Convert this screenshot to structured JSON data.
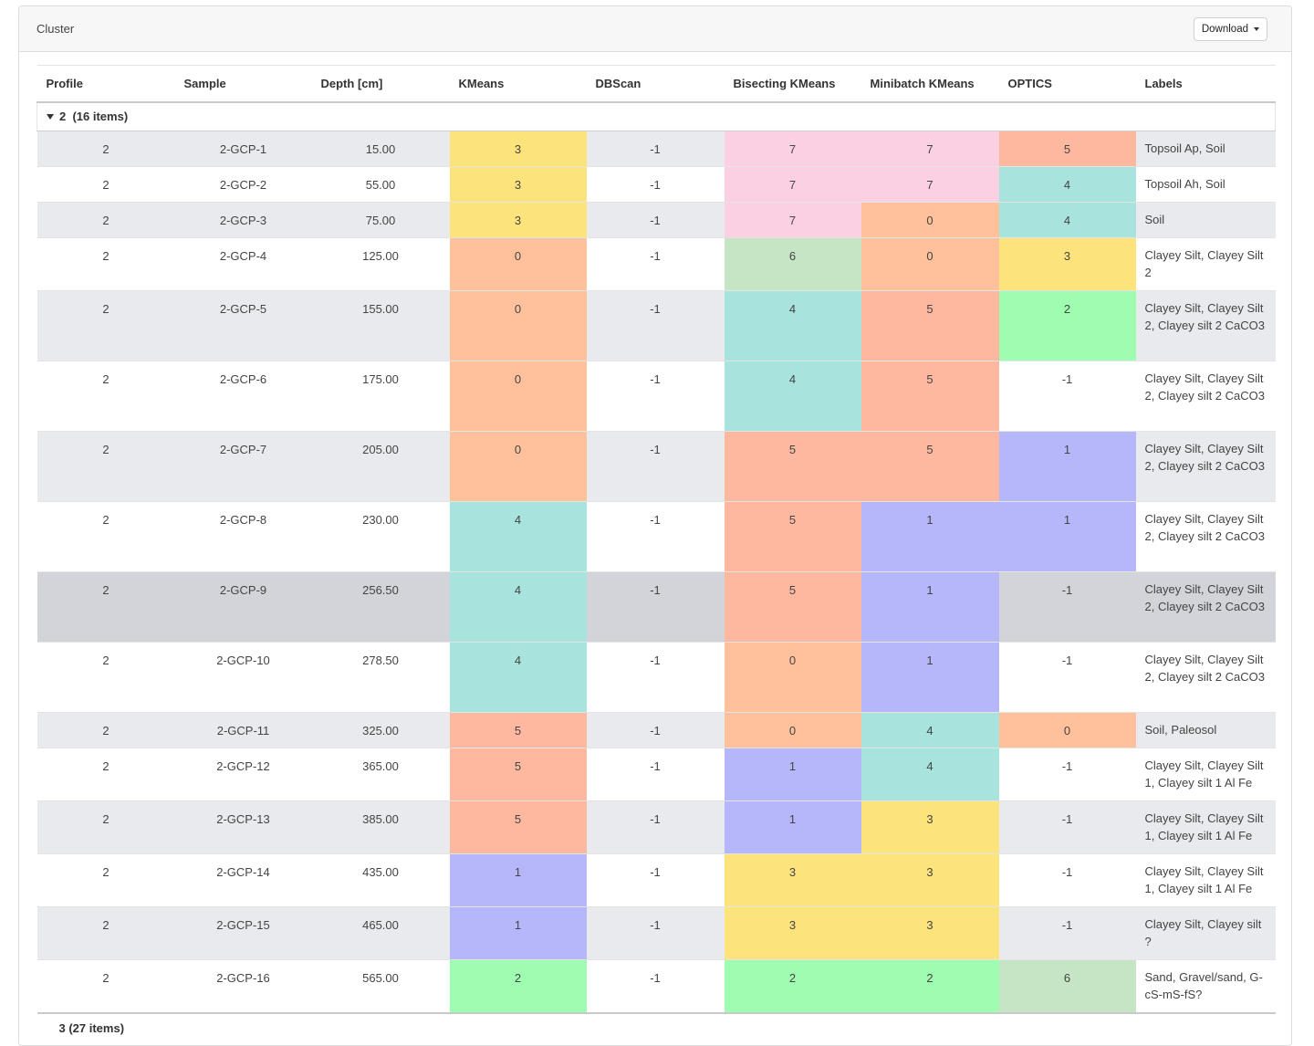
{
  "header": {
    "title": "Cluster",
    "download_label": "Download"
  },
  "columns": [
    "Profile",
    "Sample",
    "Depth [cm]",
    "KMeans",
    "DBScan",
    "Bisecting KMeans",
    "Minibatch KMeans",
    "OPTICS",
    "Labels"
  ],
  "group": {
    "key": "2",
    "count_label": "(16 items)"
  },
  "next_group": {
    "label": "3 (27 items)"
  },
  "colors": {
    "yellow": "#fde37b",
    "pink": "#fbd0e2",
    "salmon": "#ffb8a0",
    "peach": "#ffc19c",
    "teal": "#a8e4dd",
    "green": "#9ffdb2",
    "sage": "#c6e5c5",
    "purple": "#b5b7fa"
  },
  "rows": [
    {
      "profile": "2",
      "sample": "2-GCP-1",
      "depth": "15.00",
      "kmeans": "3",
      "dbscan": "-1",
      "bisecting": "7",
      "minibatch": "7",
      "optics": "5",
      "labels": "Topsoil Ap, Soil"
    },
    {
      "profile": "2",
      "sample": "2-GCP-2",
      "depth": "55.00",
      "kmeans": "3",
      "dbscan": "-1",
      "bisecting": "7",
      "minibatch": "7",
      "optics": "4",
      "labels": "Topsoil Ah, Soil"
    },
    {
      "profile": "2",
      "sample": "2-GCP-3",
      "depth": "75.00",
      "kmeans": "3",
      "dbscan": "-1",
      "bisecting": "7",
      "minibatch": "0",
      "optics": "4",
      "labels": "Soil"
    },
    {
      "profile": "2",
      "sample": "2-GCP-4",
      "depth": "125.00",
      "kmeans": "0",
      "dbscan": "-1",
      "bisecting": "6",
      "minibatch": "0",
      "optics": "3",
      "labels": "Clayey Silt, Clayey Silt 2"
    },
    {
      "profile": "2",
      "sample": "2-GCP-5",
      "depth": "155.00",
      "kmeans": "0",
      "dbscan": "-1",
      "bisecting": "4",
      "minibatch": "5",
      "optics": "2",
      "labels": "Clayey Silt, Clayey Silt 2, Clayey silt 2 CaCO3"
    },
    {
      "profile": "2",
      "sample": "2-GCP-6",
      "depth": "175.00",
      "kmeans": "0",
      "dbscan": "-1",
      "bisecting": "4",
      "minibatch": "5",
      "optics": "-1",
      "labels": "Clayey Silt, Clayey Silt 2, Clayey silt 2 CaCO3"
    },
    {
      "profile": "2",
      "sample": "2-GCP-7",
      "depth": "205.00",
      "kmeans": "0",
      "dbscan": "-1",
      "bisecting": "5",
      "minibatch": "5",
      "optics": "1",
      "labels": "Clayey Silt, Clayey Silt 2, Clayey silt 2 CaCO3"
    },
    {
      "profile": "2",
      "sample": "2-GCP-8",
      "depth": "230.00",
      "kmeans": "4",
      "dbscan": "-1",
      "bisecting": "5",
      "minibatch": "1",
      "optics": "1",
      "labels": "Clayey Silt, Clayey Silt 2, Clayey silt 2 CaCO3"
    },
    {
      "profile": "2",
      "sample": "2-GCP-9",
      "depth": "256.50",
      "kmeans": "4",
      "dbscan": "-1",
      "bisecting": "5",
      "minibatch": "1",
      "optics": "-1",
      "labels": "Clayey Silt, Clayey Silt 2, Clayey silt 2 CaCO3"
    },
    {
      "profile": "2",
      "sample": "2-GCP-10",
      "depth": "278.50",
      "kmeans": "4",
      "dbscan": "-1",
      "bisecting": "0",
      "minibatch": "1",
      "optics": "-1",
      "labels": "Clayey Silt, Clayey Silt 2, Clayey silt 2 CaCO3"
    },
    {
      "profile": "2",
      "sample": "2-GCP-11",
      "depth": "325.00",
      "kmeans": "5",
      "dbscan": "-1",
      "bisecting": "0",
      "minibatch": "4",
      "optics": "0",
      "labels": "Soil, Paleosol"
    },
    {
      "profile": "2",
      "sample": "2-GCP-12",
      "depth": "365.00",
      "kmeans": "5",
      "dbscan": "-1",
      "bisecting": "1",
      "minibatch": "4",
      "optics": "-1",
      "labels": "Clayey Silt, Clayey Silt 1, Clayey silt 1 Al Fe"
    },
    {
      "profile": "2",
      "sample": "2-GCP-13",
      "depth": "385.00",
      "kmeans": "5",
      "dbscan": "-1",
      "bisecting": "1",
      "minibatch": "3",
      "optics": "-1",
      "labels": "Clayey Silt, Clayey Silt 1, Clayey silt 1 Al Fe"
    },
    {
      "profile": "2",
      "sample": "2-GCP-14",
      "depth": "435.00",
      "kmeans": "1",
      "dbscan": "-1",
      "bisecting": "3",
      "minibatch": "3",
      "optics": "-1",
      "labels": "Clayey Silt, Clayey Silt 1, Clayey silt 1 Al Fe"
    },
    {
      "profile": "2",
      "sample": "2-GCP-15",
      "depth": "465.00",
      "kmeans": "1",
      "dbscan": "-1",
      "bisecting": "3",
      "minibatch": "3",
      "optics": "-1",
      "labels": "Clayey Silt, Clayey silt ?"
    },
    {
      "profile": "2",
      "sample": "2-GCP-16",
      "depth": "565.00",
      "kmeans": "2",
      "dbscan": "-1",
      "bisecting": "2",
      "minibatch": "2",
      "optics": "6",
      "labels": "Sand, Gravel/sand, G-cS-mS-fS?"
    }
  ]
}
